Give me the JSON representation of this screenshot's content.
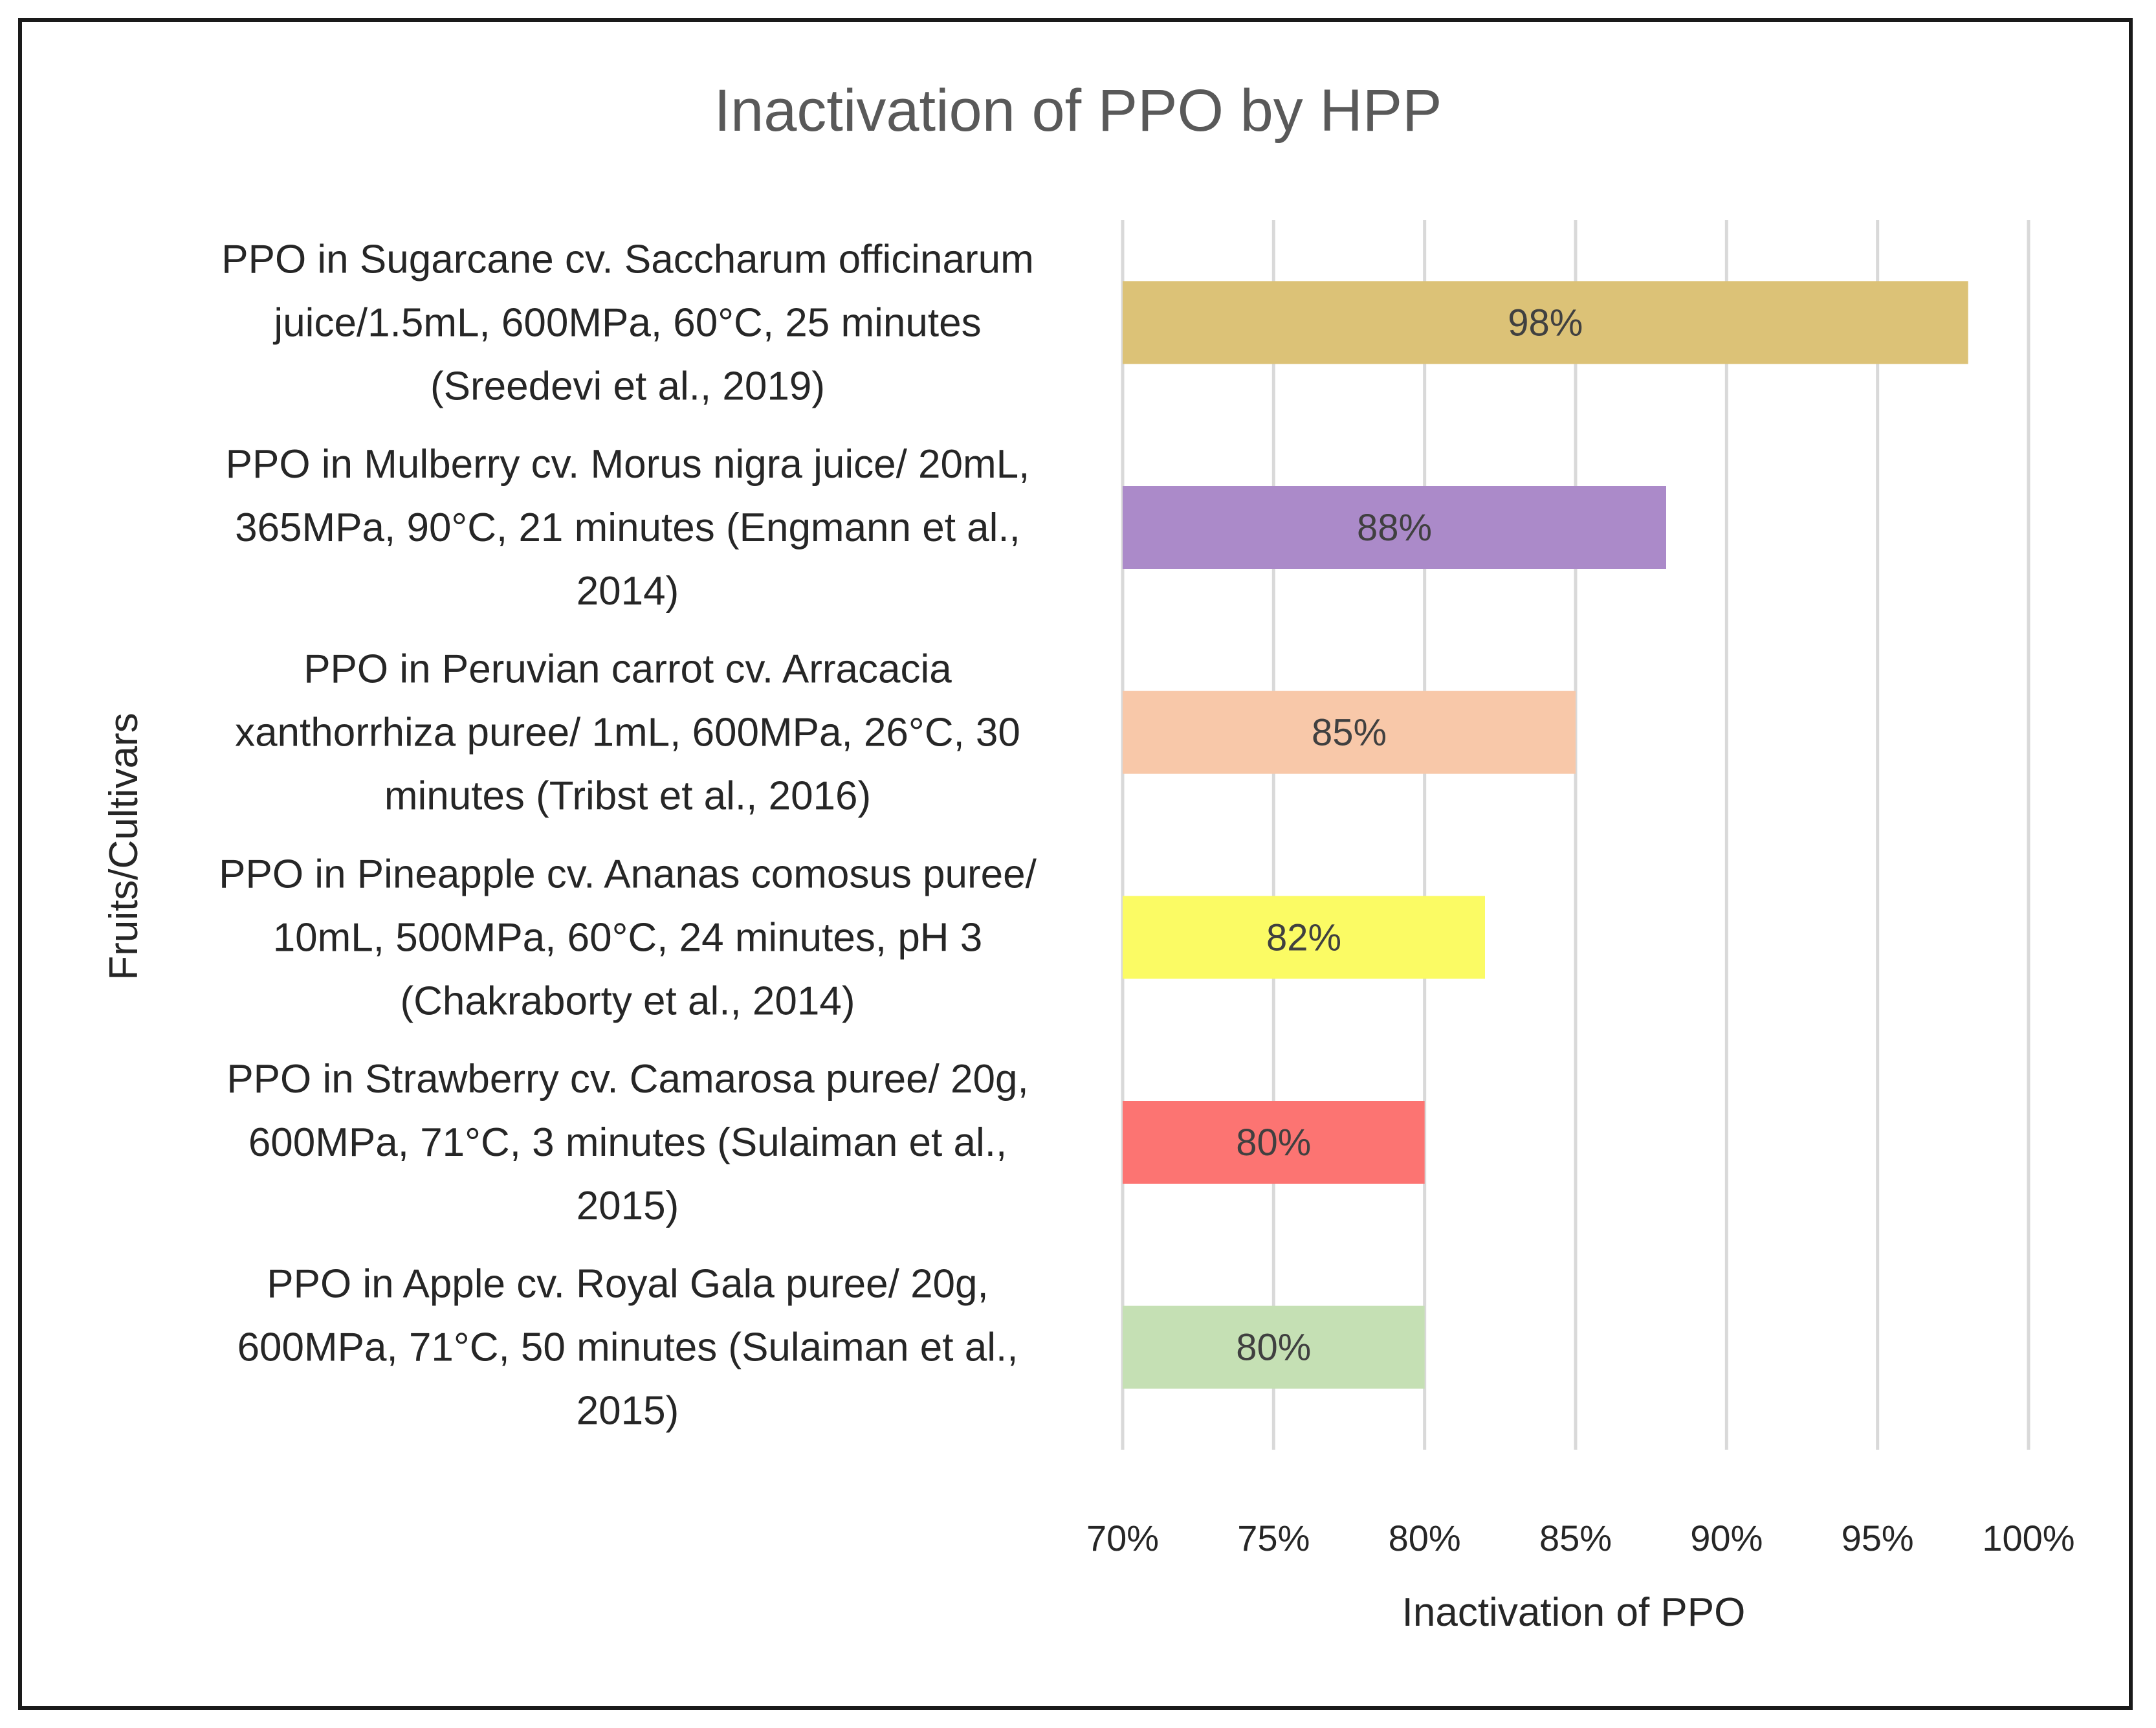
{
  "chart_data": {
    "type": "bar",
    "orientation": "horizontal",
    "title": "Inactivation of PPO by HPP",
    "xlabel": "Inactivation of PPO",
    "ylabel": "Fruits/Cultivars",
    "xlim": [
      70,
      100
    ],
    "xticks": [
      "70%",
      "75%",
      "80%",
      "85%",
      "90%",
      "95%",
      "100%"
    ],
    "grid": true,
    "categories": [
      [
        "PPO in Sugarcane cv. Saccharum officinarum",
        "juice/1.5mL, 600MPa, 60°C, 25 minutes",
        "(Sreedevi et al., 2019)"
      ],
      [
        "PPO in Mulberry cv. Morus nigra juice/ 20mL,",
        "365MPa, 90°C, 21 minutes (Engmann et al.,",
        "2014)"
      ],
      [
        "PPO in Peruvian carrot cv. Arracacia",
        "xanthorrhiza puree/ 1mL, 600MPa, 26°C, 30",
        "minutes (Tribst et al., 2016)"
      ],
      [
        "PPO in Pineapple cv. Ananas comosus puree/",
        "10mL, 500MPa, 60°C, 24 minutes, pH 3",
        "(Chakraborty et al., 2014)"
      ],
      [
        "PPO in Strawberry cv. Camarosa puree/ 20g,",
        "600MPa, 71°C, 3 minutes (Sulaiman et al.,",
        "2015)"
      ],
      [
        "PPO in Apple cv. Royal Gala puree/ 20g,",
        "600MPa, 71°C, 50 minutes (Sulaiman et al.,",
        "2015)"
      ]
    ],
    "values": [
      98,
      88,
      85,
      82,
      80,
      80
    ],
    "data_labels": [
      "98%",
      "88%",
      "85%",
      "82%",
      "80%",
      "80%"
    ],
    "colors": [
      "#dcc277",
      "#ab8ac9",
      "#f8c8a9",
      "#fbfb64",
      "#fc7472",
      "#c5e0b4"
    ]
  }
}
